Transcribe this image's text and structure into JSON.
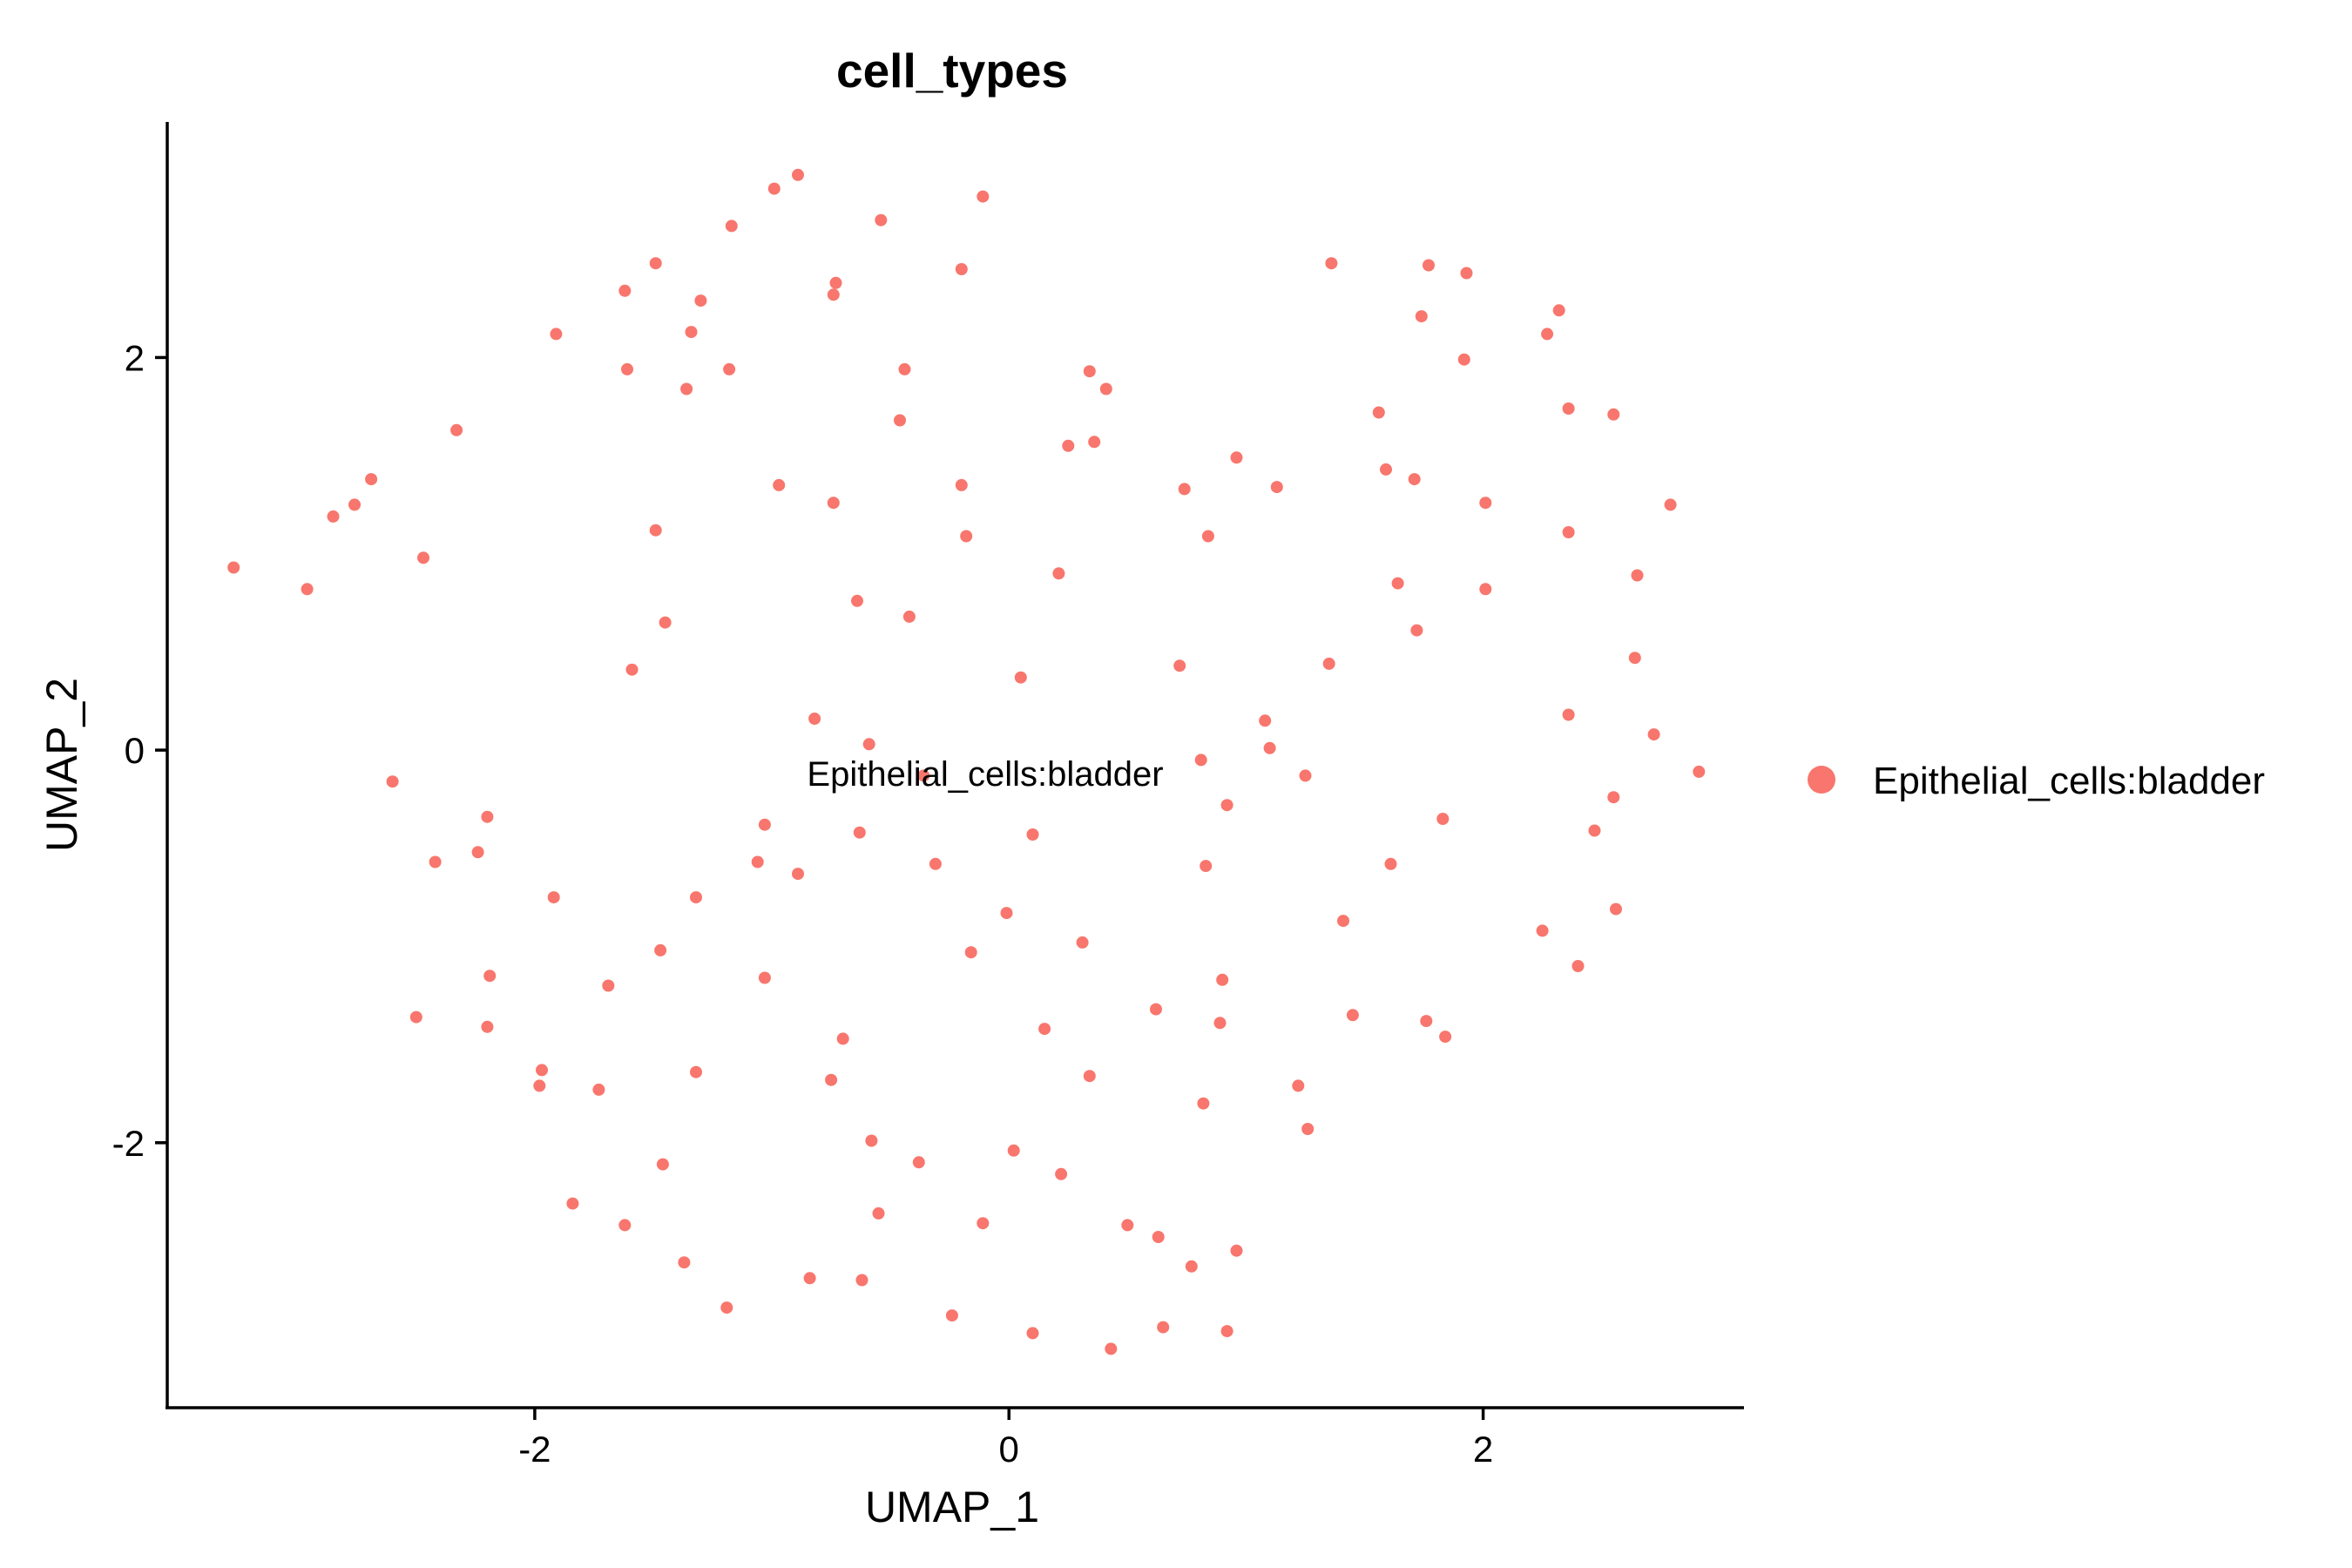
{
  "chart_data": {
    "type": "scatter",
    "title": "cell_types",
    "xlabel": "UMAP_1",
    "ylabel": "UMAP_2",
    "xlim": [
      -3.55,
      3.1
    ],
    "ylim": [
      -3.35,
      3.2
    ],
    "x_ticks": [
      -2,
      0,
      2
    ],
    "y_ticks": [
      -2,
      0,
      2
    ],
    "x_tick_labels": [
      "-2",
      "0",
      "2"
    ],
    "y_tick_labels": [
      "-2",
      "0",
      "2"
    ],
    "grid": false,
    "legend_position": "right",
    "cluster_label": {
      "text": "Epithelial_cells:bladder",
      "x": -0.1,
      "y": -0.12
    },
    "series": [
      {
        "name": "Epithelial_cells:bladder",
        "color": "#F8766D",
        "points": [
          [
            -0.89,
            2.93
          ],
          [
            -0.99,
            2.86
          ],
          [
            -0.11,
            2.82
          ],
          [
            -0.54,
            2.7
          ],
          [
            -1.17,
            2.67
          ],
          [
            -0.2,
            2.45
          ],
          [
            -1.49,
            2.48
          ],
          [
            -1.62,
            2.34
          ],
          [
            -0.73,
            2.38
          ],
          [
            -1.3,
            2.29
          ],
          [
            -0.74,
            2.32
          ],
          [
            -1.91,
            2.12
          ],
          [
            -1.34,
            2.13
          ],
          [
            -1.61,
            1.94
          ],
          [
            -1.18,
            1.94
          ],
          [
            -1.36,
            1.84
          ],
          [
            -0.44,
            1.94
          ],
          [
            0.34,
            1.93
          ],
          [
            0.41,
            1.84
          ],
          [
            -0.46,
            1.68
          ],
          [
            -2.33,
            1.63
          ],
          [
            0.36,
            1.57
          ],
          [
            0.25,
            1.55
          ],
          [
            -2.69,
            1.38
          ],
          [
            -2.76,
            1.25
          ],
          [
            -2.85,
            1.19
          ],
          [
            -0.97,
            1.35
          ],
          [
            -0.2,
            1.35
          ],
          [
            -0.74,
            1.26
          ],
          [
            -1.49,
            1.12
          ],
          [
            -0.18,
            1.09
          ],
          [
            -3.27,
            0.93
          ],
          [
            -2.96,
            0.82
          ],
          [
            -2.47,
            0.98
          ],
          [
            0.21,
            0.9
          ],
          [
            -0.64,
            0.76
          ],
          [
            -0.42,
            0.68
          ],
          [
            -1.45,
            0.65
          ],
          [
            -1.59,
            0.41
          ],
          [
            0.05,
            0.37
          ],
          [
            -0.82,
            0.16
          ],
          [
            -0.59,
            0.03
          ],
          [
            -2.6,
            -0.16
          ],
          [
            -0.36,
            -0.13
          ],
          [
            -2.2,
            -0.34
          ],
          [
            -1.03,
            -0.38
          ],
          [
            -0.63,
            -0.42
          ],
          [
            0.1,
            -0.43
          ],
          [
            -2.42,
            -0.57
          ],
          [
            -2.24,
            -0.52
          ],
          [
            -1.06,
            -0.57
          ],
          [
            -0.89,
            -0.63
          ],
          [
            -0.31,
            -0.58
          ],
          [
            -1.92,
            -0.75
          ],
          [
            -1.32,
            -0.75
          ],
          [
            -0.01,
            -0.83
          ],
          [
            -1.47,
            -1.02
          ],
          [
            -0.16,
            -1.03
          ],
          [
            0.31,
            -0.98
          ],
          [
            -2.19,
            -1.15
          ],
          [
            -1.03,
            -1.16
          ],
          [
            -1.69,
            -1.2
          ],
          [
            -2.5,
            -1.36
          ],
          [
            -2.2,
            -1.41
          ],
          [
            0.15,
            -1.42
          ],
          [
            -0.7,
            -1.47
          ],
          [
            -1.97,
            -1.63
          ],
          [
            -1.98,
            -1.71
          ],
          [
            -1.32,
            -1.64
          ],
          [
            -0.75,
            -1.68
          ],
          [
            -1.73,
            -1.73
          ],
          [
            0.34,
            -1.66
          ],
          [
            -0.58,
            -1.99
          ],
          [
            0.02,
            -2.04
          ],
          [
            -1.46,
            -2.11
          ],
          [
            -0.38,
            -2.1
          ],
          [
            0.22,
            -2.16
          ],
          [
            -1.84,
            -2.31
          ],
          [
            -1.62,
            -2.42
          ],
          [
            -0.55,
            -2.36
          ],
          [
            -0.11,
            -2.41
          ],
          [
            -1.37,
            -2.61
          ],
          [
            -0.84,
            -2.69
          ],
          [
            -0.62,
            -2.7
          ],
          [
            -1.19,
            -2.84
          ],
          [
            -0.24,
            -2.88
          ],
          [
            0.1,
            -2.97
          ],
          [
            0.43,
            -3.05
          ],
          [
            0.65,
            -2.94
          ],
          [
            0.92,
            -2.96
          ],
          [
            1.36,
            2.48
          ],
          [
            1.77,
            2.47
          ],
          [
            1.93,
            2.43
          ],
          [
            1.74,
            2.21
          ],
          [
            2.32,
            2.24
          ],
          [
            2.27,
            2.12
          ],
          [
            1.92,
            1.99
          ],
          [
            1.56,
            1.72
          ],
          [
            2.36,
            1.74
          ],
          [
            2.55,
            1.71
          ],
          [
            0.96,
            1.49
          ],
          [
            1.59,
            1.43
          ],
          [
            1.71,
            1.38
          ],
          [
            0.74,
            1.33
          ],
          [
            1.13,
            1.34
          ],
          [
            2.01,
            1.26
          ],
          [
            2.79,
            1.25
          ],
          [
            0.84,
            1.09
          ],
          [
            2.36,
            1.11
          ],
          [
            1.64,
            0.85
          ],
          [
            2.01,
            0.82
          ],
          [
            2.65,
            0.89
          ],
          [
            1.72,
            0.61
          ],
          [
            2.64,
            0.47
          ],
          [
            0.72,
            0.43
          ],
          [
            1.35,
            0.44
          ],
          [
            2.36,
            0.18
          ],
          [
            1.08,
            0.15
          ],
          [
            2.72,
            0.08
          ],
          [
            1.1,
            0.01
          ],
          [
            2.91,
            -0.11
          ],
          [
            0.81,
            -0.05
          ],
          [
            1.25,
            -0.13
          ],
          [
            0.92,
            -0.28
          ],
          [
            1.83,
            -0.35
          ],
          [
            2.55,
            -0.24
          ],
          [
            2.47,
            -0.41
          ],
          [
            0.83,
            -0.59
          ],
          [
            1.61,
            -0.58
          ],
          [
            1.41,
            -0.87
          ],
          [
            2.56,
            -0.81
          ],
          [
            2.25,
            -0.92
          ],
          [
            2.4,
            -1.1
          ],
          [
            0.9,
            -1.17
          ],
          [
            1.45,
            -1.35
          ],
          [
            1.76,
            -1.38
          ],
          [
            0.62,
            -1.32
          ],
          [
            0.89,
            -1.39
          ],
          [
            1.84,
            -1.46
          ],
          [
            1.22,
            -1.71
          ],
          [
            0.82,
            -1.8
          ],
          [
            1.26,
            -1.93
          ],
          [
            0.5,
            -2.42
          ],
          [
            0.63,
            -2.48
          ],
          [
            0.77,
            -2.63
          ],
          [
            0.96,
            -2.55
          ]
        ]
      }
    ]
  }
}
